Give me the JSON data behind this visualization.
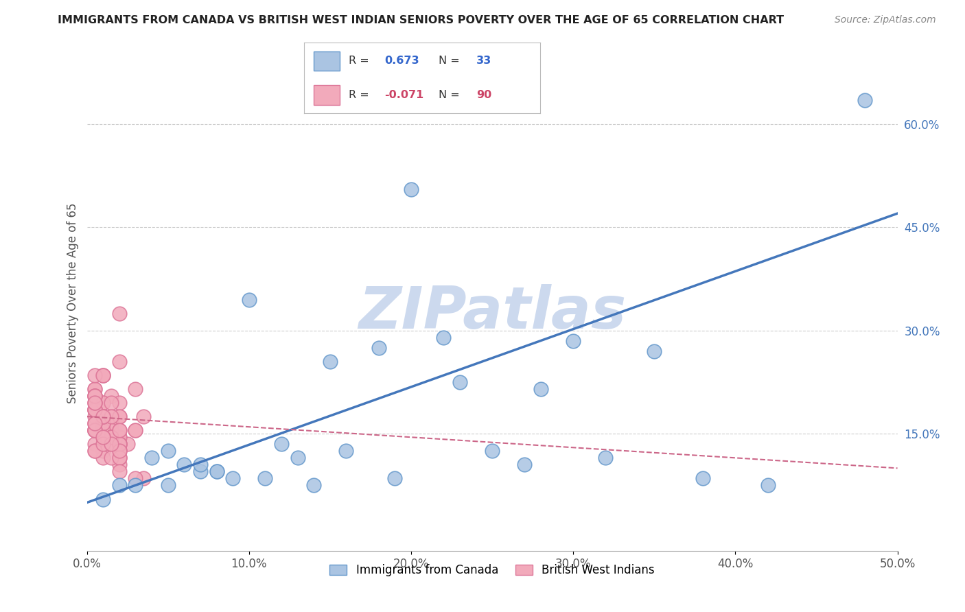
{
  "title": "IMMIGRANTS FROM CANADA VS BRITISH WEST INDIAN SENIORS POVERTY OVER THE AGE OF 65 CORRELATION CHART",
  "source": "Source: ZipAtlas.com",
  "ylabel": "Seniors Poverty Over the Age of 65",
  "xlim": [
    0.0,
    0.5
  ],
  "ylim": [
    -0.02,
    0.7
  ],
  "xtick_labels": [
    "0.0%",
    "10.0%",
    "20.0%",
    "30.0%",
    "40.0%",
    "50.0%"
  ],
  "xtick_vals": [
    0.0,
    0.1,
    0.2,
    0.3,
    0.4,
    0.5
  ],
  "ytick_right_labels": [
    "15.0%",
    "30.0%",
    "45.0%",
    "60.0%"
  ],
  "ytick_right_vals": [
    0.15,
    0.3,
    0.45,
    0.6
  ],
  "grid_color": "#cccccc",
  "background_color": "#ffffff",
  "watermark": "ZIPatlas",
  "watermark_color": "#ccd9ee",
  "series1_label": "Immigrants from Canada",
  "series1_color": "#aac4e2",
  "series1_edge_color": "#6699cc",
  "series1_line_color": "#4477bb",
  "series1_R": 0.673,
  "series1_N": 33,
  "series2_label": "British West Indians",
  "series2_color": "#f2aabb",
  "series2_edge_color": "#dd7799",
  "series2_line_color": "#cc6688",
  "series2_R": -0.071,
  "series2_N": 90,
  "legend_R1_color": "#3366cc",
  "legend_R2_color": "#cc4466",
  "blue_scatter_x": [
    0.48,
    0.35,
    0.1,
    0.22,
    0.18,
    0.05,
    0.08,
    0.12,
    0.25,
    0.3,
    0.16,
    0.04,
    0.07,
    0.03,
    0.06,
    0.09,
    0.13,
    0.2,
    0.15,
    0.23,
    0.32,
    0.02,
    0.01,
    0.05,
    0.07,
    0.11,
    0.27,
    0.42,
    0.19,
    0.08,
    0.14,
    0.38,
    0.28
  ],
  "blue_scatter_y": [
    0.635,
    0.27,
    0.345,
    0.29,
    0.275,
    0.125,
    0.095,
    0.135,
    0.125,
    0.285,
    0.125,
    0.115,
    0.095,
    0.075,
    0.105,
    0.085,
    0.115,
    0.505,
    0.255,
    0.225,
    0.115,
    0.075,
    0.055,
    0.075,
    0.105,
    0.085,
    0.105,
    0.075,
    0.085,
    0.095,
    0.075,
    0.085,
    0.215
  ],
  "pink_scatter_x": [
    0.005,
    0.01,
    0.015,
    0.01,
    0.02,
    0.005,
    0.015,
    0.01,
    0.02,
    0.005,
    0.01,
    0.015,
    0.01,
    0.02,
    0.025,
    0.01,
    0.015,
    0.02,
    0.005,
    0.01,
    0.03,
    0.01,
    0.035,
    0.02,
    0.015,
    0.005,
    0.01,
    0.005,
    0.02,
    0.005,
    0.015,
    0.02,
    0.01,
    0.005,
    0.005,
    0.03,
    0.01,
    0.015,
    0.02,
    0.005,
    0.005,
    0.02,
    0.01,
    0.005,
    0.015,
    0.02,
    0.005,
    0.01,
    0.02,
    0.005,
    0.035,
    0.015,
    0.01,
    0.005,
    0.02,
    0.005,
    0.02,
    0.01,
    0.015,
    0.005,
    0.02,
    0.005,
    0.01,
    0.03,
    0.02,
    0.015,
    0.005,
    0.01,
    0.005,
    0.02,
    0.005,
    0.015,
    0.02,
    0.01,
    0.005,
    0.005,
    0.03,
    0.01,
    0.015,
    0.02,
    0.005,
    0.005,
    0.02,
    0.01,
    0.005,
    0.015,
    0.02,
    0.005,
    0.01,
    0.02
  ],
  "pink_scatter_y": [
    0.155,
    0.135,
    0.175,
    0.195,
    0.105,
    0.215,
    0.165,
    0.235,
    0.145,
    0.185,
    0.125,
    0.205,
    0.155,
    0.175,
    0.135,
    0.195,
    0.165,
    0.115,
    0.215,
    0.145,
    0.155,
    0.235,
    0.175,
    0.195,
    0.135,
    0.185,
    0.115,
    0.165,
    0.145,
    0.205,
    0.155,
    0.125,
    0.175,
    0.195,
    0.135,
    0.215,
    0.165,
    0.145,
    0.325,
    0.185,
    0.155,
    0.135,
    0.175,
    0.235,
    0.195,
    0.135,
    0.205,
    0.155,
    0.125,
    0.175,
    0.085,
    0.145,
    0.165,
    0.155,
    0.135,
    0.185,
    0.115,
    0.175,
    0.145,
    0.205,
    0.155,
    0.125,
    0.175,
    0.085,
    0.255,
    0.145,
    0.165,
    0.235,
    0.155,
    0.135,
    0.185,
    0.115,
    0.175,
    0.145,
    0.125,
    0.195,
    0.155,
    0.135,
    0.175,
    0.115,
    0.205,
    0.155,
    0.125,
    0.175,
    0.195,
    0.135,
    0.155,
    0.165,
    0.145,
    0.095
  ],
  "blue_trend": [
    0.05,
    0.47
  ],
  "pink_trend_start": 0.175,
  "pink_trend_end": 0.1
}
